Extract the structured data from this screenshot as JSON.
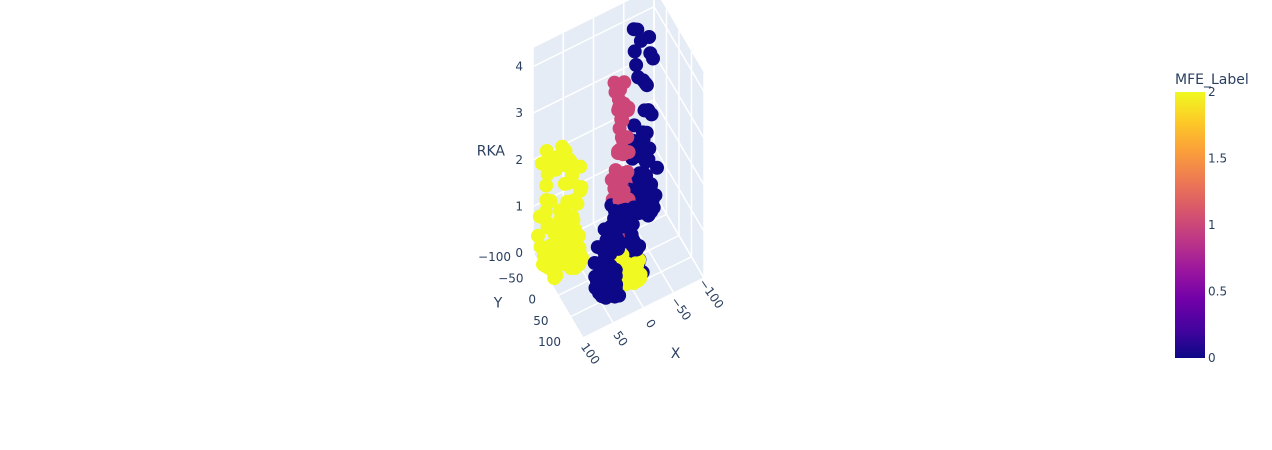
{
  "chart_data": {
    "type": "scatter3d",
    "axes": {
      "x": {
        "title": "X",
        "ticks": [
          "100",
          "50",
          "0",
          "−50",
          "−100"
        ]
      },
      "y": {
        "title": "Y",
        "ticks": [
          "−100",
          "−50",
          "0",
          "50",
          "100"
        ]
      },
      "z": {
        "title": "RKA",
        "ticks": [
          "0",
          "1",
          "2",
          "3",
          "4"
        ],
        "range": [
          0,
          4.4
        ]
      }
    },
    "colorbar": {
      "title": "MFE_Label",
      "range": [
        0,
        2
      ],
      "ticks": [
        "0",
        "0.5",
        "1",
        "1.5",
        "2"
      ],
      "colorscale": [
        "#0d0887",
        "#46039f",
        "#7201a8",
        "#9c179e",
        "#bd3786",
        "#d8576b",
        "#ed7953",
        "#fb9f3a",
        "#fdca26",
        "#f0f921"
      ]
    },
    "clusters": [
      {
        "label": 0,
        "color": "#0d0887",
        "x_range": [
          -30,
          20
        ],
        "y_range": [
          -40,
          40
        ],
        "z_max": 1.2,
        "count": 120
      },
      {
        "label": 0,
        "color": "#0d0887",
        "x_range": [
          -90,
          -60
        ],
        "y_range": [
          -100,
          -60
        ],
        "z_max": 4.2,
        "count": 70
      },
      {
        "label": 0,
        "color": "#0d0887",
        "x_range": [
          20,
          50
        ],
        "y_range": [
          20,
          60
        ],
        "z_max": 0.6,
        "count": 60
      },
      {
        "label": 1,
        "color": "#cc4778",
        "x_range": [
          -30,
          -10
        ],
        "y_range": [
          -60,
          -20
        ],
        "z_max": 3.6,
        "count": 90
      },
      {
        "label": 2,
        "color": "#f0f921",
        "x_range": [
          40,
          100
        ],
        "y_range": [
          -90,
          -30
        ],
        "z_max": 2.3,
        "count": 110
      },
      {
        "label": 2,
        "color": "#f0f921",
        "x_range": [
          -20,
          10
        ],
        "y_range": [
          10,
          50
        ],
        "z_max": 0.5,
        "count": 50
      }
    ]
  }
}
